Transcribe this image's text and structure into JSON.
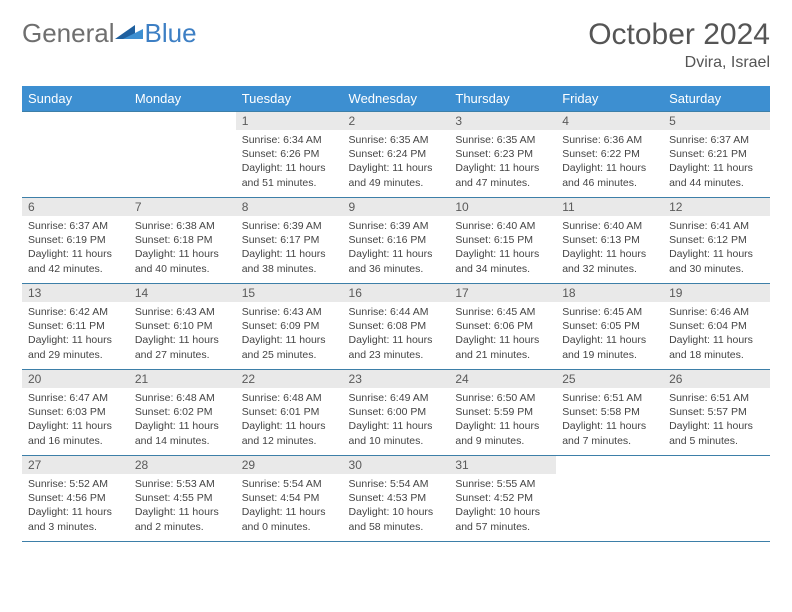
{
  "brand": {
    "part1": "General",
    "part2": "Blue"
  },
  "title": "October 2024",
  "location": "Dvira, Israel",
  "colors": {
    "header_bg": "#3d8fd1",
    "rule": "#3d7fa8",
    "daynum_bg": "#e9e9e9",
    "logo_gray": "#6f6f6f",
    "logo_blue": "#3d7fc4"
  },
  "daynames": [
    "Sunday",
    "Monday",
    "Tuesday",
    "Wednesday",
    "Thursday",
    "Friday",
    "Saturday"
  ],
  "weeks": [
    [
      null,
      null,
      {
        "n": "1",
        "sr": "6:34 AM",
        "ss": "6:26 PM",
        "dl": "11 hours and 51 minutes."
      },
      {
        "n": "2",
        "sr": "6:35 AM",
        "ss": "6:24 PM",
        "dl": "11 hours and 49 minutes."
      },
      {
        "n": "3",
        "sr": "6:35 AM",
        "ss": "6:23 PM",
        "dl": "11 hours and 47 minutes."
      },
      {
        "n": "4",
        "sr": "6:36 AM",
        "ss": "6:22 PM",
        "dl": "11 hours and 46 minutes."
      },
      {
        "n": "5",
        "sr": "6:37 AM",
        "ss": "6:21 PM",
        "dl": "11 hours and 44 minutes."
      }
    ],
    [
      {
        "n": "6",
        "sr": "6:37 AM",
        "ss": "6:19 PM",
        "dl": "11 hours and 42 minutes."
      },
      {
        "n": "7",
        "sr": "6:38 AM",
        "ss": "6:18 PM",
        "dl": "11 hours and 40 minutes."
      },
      {
        "n": "8",
        "sr": "6:39 AM",
        "ss": "6:17 PM",
        "dl": "11 hours and 38 minutes."
      },
      {
        "n": "9",
        "sr": "6:39 AM",
        "ss": "6:16 PM",
        "dl": "11 hours and 36 minutes."
      },
      {
        "n": "10",
        "sr": "6:40 AM",
        "ss": "6:15 PM",
        "dl": "11 hours and 34 minutes."
      },
      {
        "n": "11",
        "sr": "6:40 AM",
        "ss": "6:13 PM",
        "dl": "11 hours and 32 minutes."
      },
      {
        "n": "12",
        "sr": "6:41 AM",
        "ss": "6:12 PM",
        "dl": "11 hours and 30 minutes."
      }
    ],
    [
      {
        "n": "13",
        "sr": "6:42 AM",
        "ss": "6:11 PM",
        "dl": "11 hours and 29 minutes."
      },
      {
        "n": "14",
        "sr": "6:43 AM",
        "ss": "6:10 PM",
        "dl": "11 hours and 27 minutes."
      },
      {
        "n": "15",
        "sr": "6:43 AM",
        "ss": "6:09 PM",
        "dl": "11 hours and 25 minutes."
      },
      {
        "n": "16",
        "sr": "6:44 AM",
        "ss": "6:08 PM",
        "dl": "11 hours and 23 minutes."
      },
      {
        "n": "17",
        "sr": "6:45 AM",
        "ss": "6:06 PM",
        "dl": "11 hours and 21 minutes."
      },
      {
        "n": "18",
        "sr": "6:45 AM",
        "ss": "6:05 PM",
        "dl": "11 hours and 19 minutes."
      },
      {
        "n": "19",
        "sr": "6:46 AM",
        "ss": "6:04 PM",
        "dl": "11 hours and 18 minutes."
      }
    ],
    [
      {
        "n": "20",
        "sr": "6:47 AM",
        "ss": "6:03 PM",
        "dl": "11 hours and 16 minutes."
      },
      {
        "n": "21",
        "sr": "6:48 AM",
        "ss": "6:02 PM",
        "dl": "11 hours and 14 minutes."
      },
      {
        "n": "22",
        "sr": "6:48 AM",
        "ss": "6:01 PM",
        "dl": "11 hours and 12 minutes."
      },
      {
        "n": "23",
        "sr": "6:49 AM",
        "ss": "6:00 PM",
        "dl": "11 hours and 10 minutes."
      },
      {
        "n": "24",
        "sr": "6:50 AM",
        "ss": "5:59 PM",
        "dl": "11 hours and 9 minutes."
      },
      {
        "n": "25",
        "sr": "6:51 AM",
        "ss": "5:58 PM",
        "dl": "11 hours and 7 minutes."
      },
      {
        "n": "26",
        "sr": "6:51 AM",
        "ss": "5:57 PM",
        "dl": "11 hours and 5 minutes."
      }
    ],
    [
      {
        "n": "27",
        "sr": "5:52 AM",
        "ss": "4:56 PM",
        "dl": "11 hours and 3 minutes."
      },
      {
        "n": "28",
        "sr": "5:53 AM",
        "ss": "4:55 PM",
        "dl": "11 hours and 2 minutes."
      },
      {
        "n": "29",
        "sr": "5:54 AM",
        "ss": "4:54 PM",
        "dl": "11 hours and 0 minutes."
      },
      {
        "n": "30",
        "sr": "5:54 AM",
        "ss": "4:53 PM",
        "dl": "10 hours and 58 minutes."
      },
      {
        "n": "31",
        "sr": "5:55 AM",
        "ss": "4:52 PM",
        "dl": "10 hours and 57 minutes."
      },
      null,
      null
    ]
  ],
  "labels": {
    "sunrise": "Sunrise: ",
    "sunset": "Sunset: ",
    "daylight": "Daylight: "
  }
}
